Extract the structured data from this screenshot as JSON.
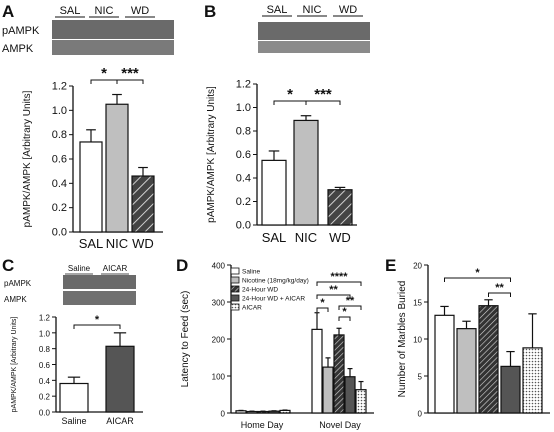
{
  "chart_data": [
    {
      "panel": "A",
      "type": "bar",
      "blot_labels": [
        "pAMPK",
        "AMPK"
      ],
      "group_labels": [
        "SAL",
        "NIC",
        "WD"
      ],
      "categories": [
        "SAL",
        "NIC",
        "WD"
      ],
      "values": [
        0.74,
        1.05,
        0.46
      ],
      "errors": [
        0.1,
        0.08,
        0.07
      ],
      "fills": [
        "#ffffff",
        "#bfbfbf",
        "hatch"
      ],
      "ylabel": "pAMPK/AMPK [Arbitrary Units]",
      "ylim": [
        0,
        1.2
      ],
      "yticks": [
        "0.0",
        "0.2",
        "0.4",
        "0.6",
        "0.8",
        "1.0",
        "1.2"
      ],
      "significance": [
        {
          "from": 0,
          "to": 1,
          "label": "*"
        },
        {
          "from": 1,
          "to": 2,
          "label": "***"
        }
      ]
    },
    {
      "panel": "B",
      "type": "bar",
      "group_labels": [
        "SAL",
        "NIC",
        "WD"
      ],
      "categories": [
        "SAL",
        "NIC",
        "WD"
      ],
      "values": [
        0.55,
        0.89,
        0.3
      ],
      "errors": [
        0.08,
        0.04,
        0.02
      ],
      "fills": [
        "#ffffff",
        "#bfbfbf",
        "hatch"
      ],
      "ylabel": "pAMPK/AMPK [Arbitrary Units]",
      "ylim": [
        0,
        1.2
      ],
      "yticks": [
        "0.0",
        "0.2",
        "0.4",
        "0.6",
        "0.8",
        "1.0",
        "1.2"
      ],
      "significance": [
        {
          "from": 0,
          "to": 1,
          "label": "*"
        },
        {
          "from": 1,
          "to": 2,
          "label": "***"
        }
      ]
    },
    {
      "panel": "C",
      "type": "bar",
      "blot_labels": [
        "pAMPK",
        "AMPK"
      ],
      "group_labels": [
        "Saline",
        "AICAR"
      ],
      "categories": [
        "Saline",
        "AICAR"
      ],
      "values": [
        0.36,
        0.83
      ],
      "errors": [
        0.08,
        0.17
      ],
      "fills": [
        "#ffffff",
        "#555555"
      ],
      "ylabel": "pAMPK/AMPK [Arbitrary Units]",
      "ylim": [
        0,
        1.2
      ],
      "yticks": [
        "0.0",
        "0.2",
        "0.4",
        "0.6",
        "0.8",
        "1.0",
        "1.2"
      ],
      "significance": [
        {
          "from": 0,
          "to": 1,
          "label": "*"
        }
      ]
    },
    {
      "panel": "D",
      "type": "bar",
      "categories": [
        "Home Day",
        "Novel Day"
      ],
      "legend": [
        "Saline",
        "Nicotine (18mg/kg/day)",
        "24-Hour WD",
        "24-Hour WD + AICAR",
        "AICAR"
      ],
      "series": [
        {
          "name": "Saline",
          "values": [
            6,
            226
          ],
          "errors": [
            1,
            45
          ],
          "fill": "#ffffff"
        },
        {
          "name": "Nicotine (18mg/kg/day)",
          "values": [
            4,
            124
          ],
          "errors": [
            1,
            25
          ],
          "fill": "#bfbfbf"
        },
        {
          "name": "24-Hour WD",
          "values": [
            4,
            211
          ],
          "errors": [
            1,
            18
          ],
          "fill": "hatch"
        },
        {
          "name": "24-Hour WD + AICAR",
          "values": [
            5,
            98
          ],
          "errors": [
            1,
            22
          ],
          "fill": "#555555"
        },
        {
          "name": "AICAR",
          "values": [
            7,
            63
          ],
          "errors": [
            1,
            22
          ],
          "fill": "dots"
        }
      ],
      "ylabel": "Latency to Feed (sec)",
      "ylim": [
        0,
        400
      ],
      "yticks": [
        "0",
        "100",
        "200",
        "300",
        "400"
      ],
      "significance": [
        {
          "group": 1,
          "from": 0,
          "to": 1,
          "label": "*"
        },
        {
          "group": 1,
          "from": 0,
          "to": 3,
          "label": "**"
        },
        {
          "group": 1,
          "from": 0,
          "to": 4,
          "label": "****"
        },
        {
          "group": 1,
          "from": 2,
          "to": 3,
          "label": "*"
        },
        {
          "group": 1,
          "from": 2,
          "to": 4,
          "label": "**"
        }
      ]
    },
    {
      "panel": "E",
      "type": "bar",
      "series": [
        {
          "name": "Saline",
          "value": 13.2,
          "error": 1.2,
          "fill": "#ffffff"
        },
        {
          "name": "Nicotine (18mg/kg/day)",
          "value": 11.4,
          "error": 1.0,
          "fill": "#bfbfbf"
        },
        {
          "name": "24-Hour WD",
          "value": 14.5,
          "error": 0.8,
          "fill": "hatch"
        },
        {
          "name": "24-Hour WD + AICAR",
          "value": 6.3,
          "error": 2.0,
          "fill": "#555555"
        },
        {
          "name": "AICAR",
          "value": 8.8,
          "error": 4.6,
          "fill": "dots"
        }
      ],
      "ylabel": "Number of Marbles Buried",
      "ylim": [
        0,
        20
      ],
      "yticks": [
        "0",
        "5",
        "10",
        "15",
        "20"
      ],
      "significance": [
        {
          "from": 0,
          "to": 3,
          "label": "*"
        },
        {
          "from": 2,
          "to": 3,
          "label": "**"
        }
      ]
    }
  ]
}
